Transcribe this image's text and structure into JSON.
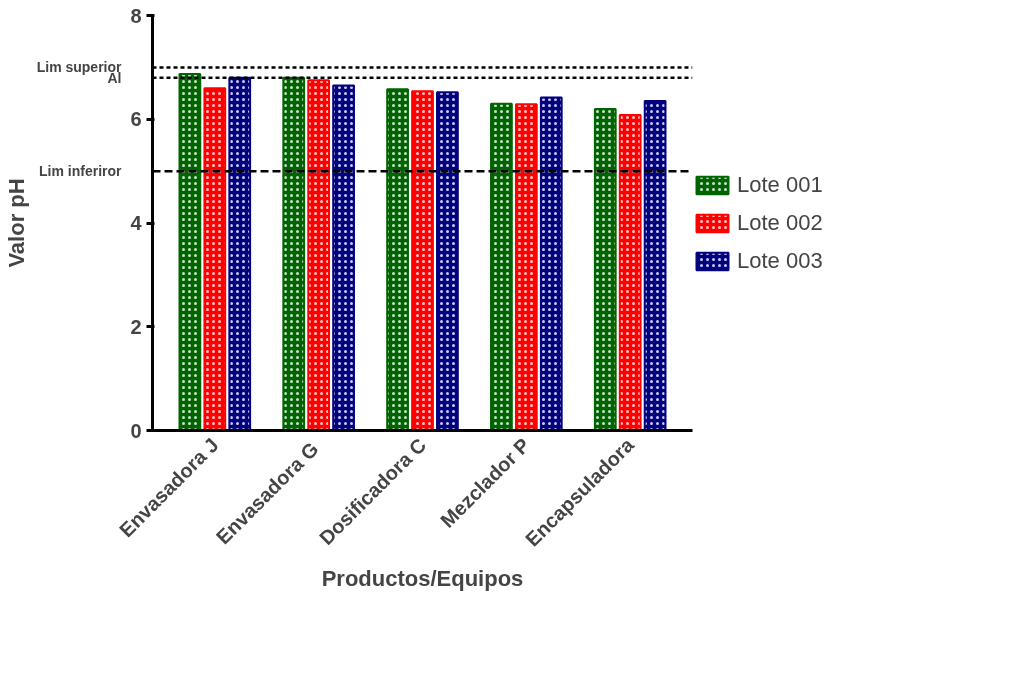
{
  "chart_data": {
    "type": "bar",
    "xlabel": "Productos/Equipos",
    "ylabel": "Valor pH",
    "categories": [
      "Envasadora J",
      "Envasadora  G",
      "Dosificadora C",
      "Mezclador P",
      "Encapsuladora"
    ],
    "series": [
      {
        "name": "Lote 001",
        "color": "#006400",
        "values": [
          6.87,
          6.8,
          6.58,
          6.3,
          6.2
        ]
      },
      {
        "name": "Lote 002",
        "color": "#ff0000",
        "values": [
          6.6,
          6.75,
          6.54,
          6.29,
          6.08
        ]
      },
      {
        "name": "Lote 003",
        "color": "#000080",
        "values": [
          6.8,
          6.65,
          6.52,
          6.42,
          6.35
        ]
      }
    ],
    "ylim": [
      0,
      8
    ],
    "yticks": [
      0,
      2,
      4,
      6,
      8
    ],
    "grid": false,
    "legend": "right",
    "ref_lines": [
      {
        "axis": "y",
        "value": 7.0,
        "label": "Lim superior",
        "line_style": "dotted"
      },
      {
        "axis": "y",
        "value": 6.8,
        "label": "Al",
        "line_style": "dotted"
      },
      {
        "axis": "y",
        "value": 5.0,
        "label": "Lim inferiror",
        "line_style": "dashed"
      }
    ]
  }
}
